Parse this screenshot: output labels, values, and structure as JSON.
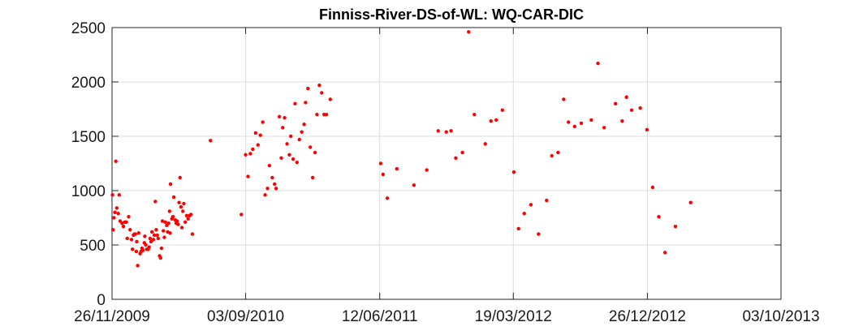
{
  "chart_data": {
    "type": "scatter",
    "title": "Finniss-River-DS-of-WL: WQ-CAR-DIC",
    "xlabel": "",
    "ylabel": "",
    "x_axis": {
      "scale": "date",
      "range": [
        "2009-11-26",
        "2013-10-03"
      ],
      "ticks": [
        "2009-11-26",
        "2010-09-03",
        "2011-06-12",
        "2012-03-19",
        "2012-12-26",
        "2013-10-03"
      ],
      "tick_labels": [
        "26/11/2009",
        "03/09/2010",
        "12/06/2011",
        "19/03/2012",
        "26/12/2012",
        "03/10/2013"
      ]
    },
    "y_axis": {
      "range": [
        0,
        2500
      ],
      "ticks": [
        0,
        500,
        1000,
        1500,
        2000,
        2500
      ],
      "tick_labels": [
        "0",
        "500",
        "1000",
        "1500",
        "2000",
        "2500"
      ]
    },
    "grid": true,
    "marker_color": "#ff0000",
    "points": [
      [
        "2009-11-27",
        960
      ],
      [
        "2009-11-28",
        640
      ],
      [
        "2009-11-30",
        750
      ],
      [
        "2009-12-02",
        800
      ],
      [
        "2009-12-04",
        1270
      ],
      [
        "2009-12-06",
        840
      ],
      [
        "2009-12-09",
        790
      ],
      [
        "2009-12-11",
        960
      ],
      [
        "2009-12-13",
        720
      ],
      [
        "2009-12-17",
        700
      ],
      [
        "2009-12-20",
        670
      ],
      [
        "2009-12-23",
        710
      ],
      [
        "2009-12-26",
        710
      ],
      [
        "2009-12-28",
        560
      ],
      [
        "2009-12-31",
        760
      ],
      [
        "2010-01-03",
        640
      ],
      [
        "2010-01-06",
        550
      ],
      [
        "2010-01-08",
        460
      ],
      [
        "2010-01-10",
        590
      ],
      [
        "2010-01-12",
        600
      ],
      [
        "2010-01-14",
        600
      ],
      [
        "2010-01-16",
        440
      ],
      [
        "2010-01-17",
        530
      ],
      [
        "2010-01-19",
        310
      ],
      [
        "2010-01-21",
        610
      ],
      [
        "2010-01-24",
        420
      ],
      [
        "2010-01-26",
        440
      ],
      [
        "2010-01-28",
        470
      ],
      [
        "2010-01-30",
        450
      ],
      [
        "2010-02-02",
        520
      ],
      [
        "2010-02-03",
        580
      ],
      [
        "2010-02-05",
        500
      ],
      [
        "2010-02-07",
        460
      ],
      [
        "2010-02-10",
        460
      ],
      [
        "2010-02-12",
        480
      ],
      [
        "2010-02-14",
        560
      ],
      [
        "2010-02-16",
        530
      ],
      [
        "2010-02-18",
        620
      ],
      [
        "2010-02-21",
        550
      ],
      [
        "2010-02-23",
        590
      ],
      [
        "2010-02-25",
        900
      ],
      [
        "2010-02-27",
        640
      ],
      [
        "2010-03-01",
        590
      ],
      [
        "2010-03-03",
        560
      ],
      [
        "2010-03-06",
        400
      ],
      [
        "2010-03-08",
        380
      ],
      [
        "2010-03-10",
        470
      ],
      [
        "2010-03-12",
        720
      ],
      [
        "2010-03-14",
        630
      ],
      [
        "2010-03-16",
        570
      ],
      [
        "2010-03-18",
        710
      ],
      [
        "2010-03-21",
        680
      ],
      [
        "2010-03-23",
        620
      ],
      [
        "2010-03-25",
        700
      ],
      [
        "2010-03-27",
        810
      ],
      [
        "2010-03-28",
        610
      ],
      [
        "2010-03-29",
        1060
      ],
      [
        "2010-04-01",
        740
      ],
      [
        "2010-04-03",
        760
      ],
      [
        "2010-04-05",
        940
      ],
      [
        "2010-04-08",
        730
      ],
      [
        "2010-04-10",
        700
      ],
      [
        "2010-04-12",
        720
      ],
      [
        "2010-04-14",
        690
      ],
      [
        "2010-04-16",
        890
      ],
      [
        "2010-04-18",
        1120
      ],
      [
        "2010-04-20",
        850
      ],
      [
        "2010-04-22",
        660
      ],
      [
        "2010-04-24",
        810
      ],
      [
        "2010-04-26",
        880
      ],
      [
        "2010-04-29",
        710
      ],
      [
        "2010-05-02",
        770
      ],
      [
        "2010-05-05",
        740
      ],
      [
        "2010-05-08",
        770
      ],
      [
        "2010-05-11",
        780
      ],
      [
        "2010-05-14",
        600
      ],
      [
        "2010-06-21",
        1460
      ],
      [
        "2010-08-25",
        780
      ],
      [
        "2010-09-03",
        1330
      ],
      [
        "2010-09-08",
        1130
      ],
      [
        "2010-09-13",
        1340
      ],
      [
        "2010-09-18",
        1380
      ],
      [
        "2010-09-24",
        1530
      ],
      [
        "2010-09-29",
        1420
      ],
      [
        "2010-10-04",
        1510
      ],
      [
        "2010-10-09",
        1630
      ],
      [
        "2010-10-14",
        960
      ],
      [
        "2010-10-19",
        1020
      ],
      [
        "2010-10-23",
        1230
      ],
      [
        "2010-10-29",
        1120
      ],
      [
        "2010-11-03",
        1060
      ],
      [
        "2010-11-06",
        1020
      ],
      [
        "2010-11-13",
        1680
      ],
      [
        "2010-11-17",
        1300
      ],
      [
        "2010-11-20",
        1580
      ],
      [
        "2010-11-24",
        1670
      ],
      [
        "2010-11-29",
        1430
      ],
      [
        "2010-12-04",
        1330
      ],
      [
        "2010-12-07",
        1500
      ],
      [
        "2010-12-12",
        1290
      ],
      [
        "2010-12-16",
        1800
      ],
      [
        "2010-12-20",
        1260
      ],
      [
        "2010-12-25",
        1470
      ],
      [
        "2010-12-30",
        1540
      ],
      [
        "2011-01-04",
        1610
      ],
      [
        "2011-01-07",
        1810
      ],
      [
        "2011-01-12",
        1940
      ],
      [
        "2011-01-17",
        1400
      ],
      [
        "2011-01-22",
        1120
      ],
      [
        "2011-01-27",
        1350
      ],
      [
        "2011-01-31",
        1700
      ],
      [
        "2011-02-05",
        1970
      ],
      [
        "2011-02-10",
        1900
      ],
      [
        "2011-02-15",
        1700
      ],
      [
        "2011-02-20",
        1700
      ],
      [
        "2011-02-28",
        1840
      ],
      [
        "2011-06-14",
        1250
      ],
      [
        "2011-06-19",
        1150
      ],
      [
        "2011-06-28",
        930
      ],
      [
        "2011-07-18",
        1200
      ],
      [
        "2011-08-23",
        1050
      ],
      [
        "2011-09-19",
        1190
      ],
      [
        "2011-10-13",
        1550
      ],
      [
        "2011-10-30",
        1540
      ],
      [
        "2011-11-09",
        1550
      ],
      [
        "2011-11-19",
        1300
      ],
      [
        "2011-12-03",
        1350
      ],
      [
        "2011-12-16",
        2460
      ],
      [
        "2011-12-28",
        1700
      ],
      [
        "2012-01-20",
        1430
      ],
      [
        "2012-02-01",
        1640
      ],
      [
        "2012-02-12",
        1650
      ],
      [
        "2012-02-25",
        1740
      ],
      [
        "2012-03-20",
        1170
      ],
      [
        "2012-03-30",
        650
      ],
      [
        "2012-04-11",
        790
      ],
      [
        "2012-04-25",
        870
      ],
      [
        "2012-05-11",
        600
      ],
      [
        "2012-05-28",
        910
      ],
      [
        "2012-06-08",
        1320
      ],
      [
        "2012-06-21",
        1350
      ],
      [
        "2012-07-03",
        1840
      ],
      [
        "2012-07-13",
        1630
      ],
      [
        "2012-07-26",
        1590
      ],
      [
        "2012-08-09",
        1620
      ],
      [
        "2012-08-30",
        1650
      ],
      [
        "2012-09-13",
        2170
      ],
      [
        "2012-09-26",
        1580
      ],
      [
        "2012-10-20",
        1800
      ],
      [
        "2012-11-03",
        1640
      ],
      [
        "2012-11-12",
        1860
      ],
      [
        "2012-11-23",
        1740
      ],
      [
        "2012-12-11",
        1760
      ],
      [
        "2012-12-25",
        1560
      ],
      [
        "2013-01-06",
        1030
      ],
      [
        "2013-01-19",
        760
      ],
      [
        "2013-02-01",
        430
      ],
      [
        "2013-02-23",
        670
      ],
      [
        "2013-03-27",
        890
      ]
    ]
  }
}
